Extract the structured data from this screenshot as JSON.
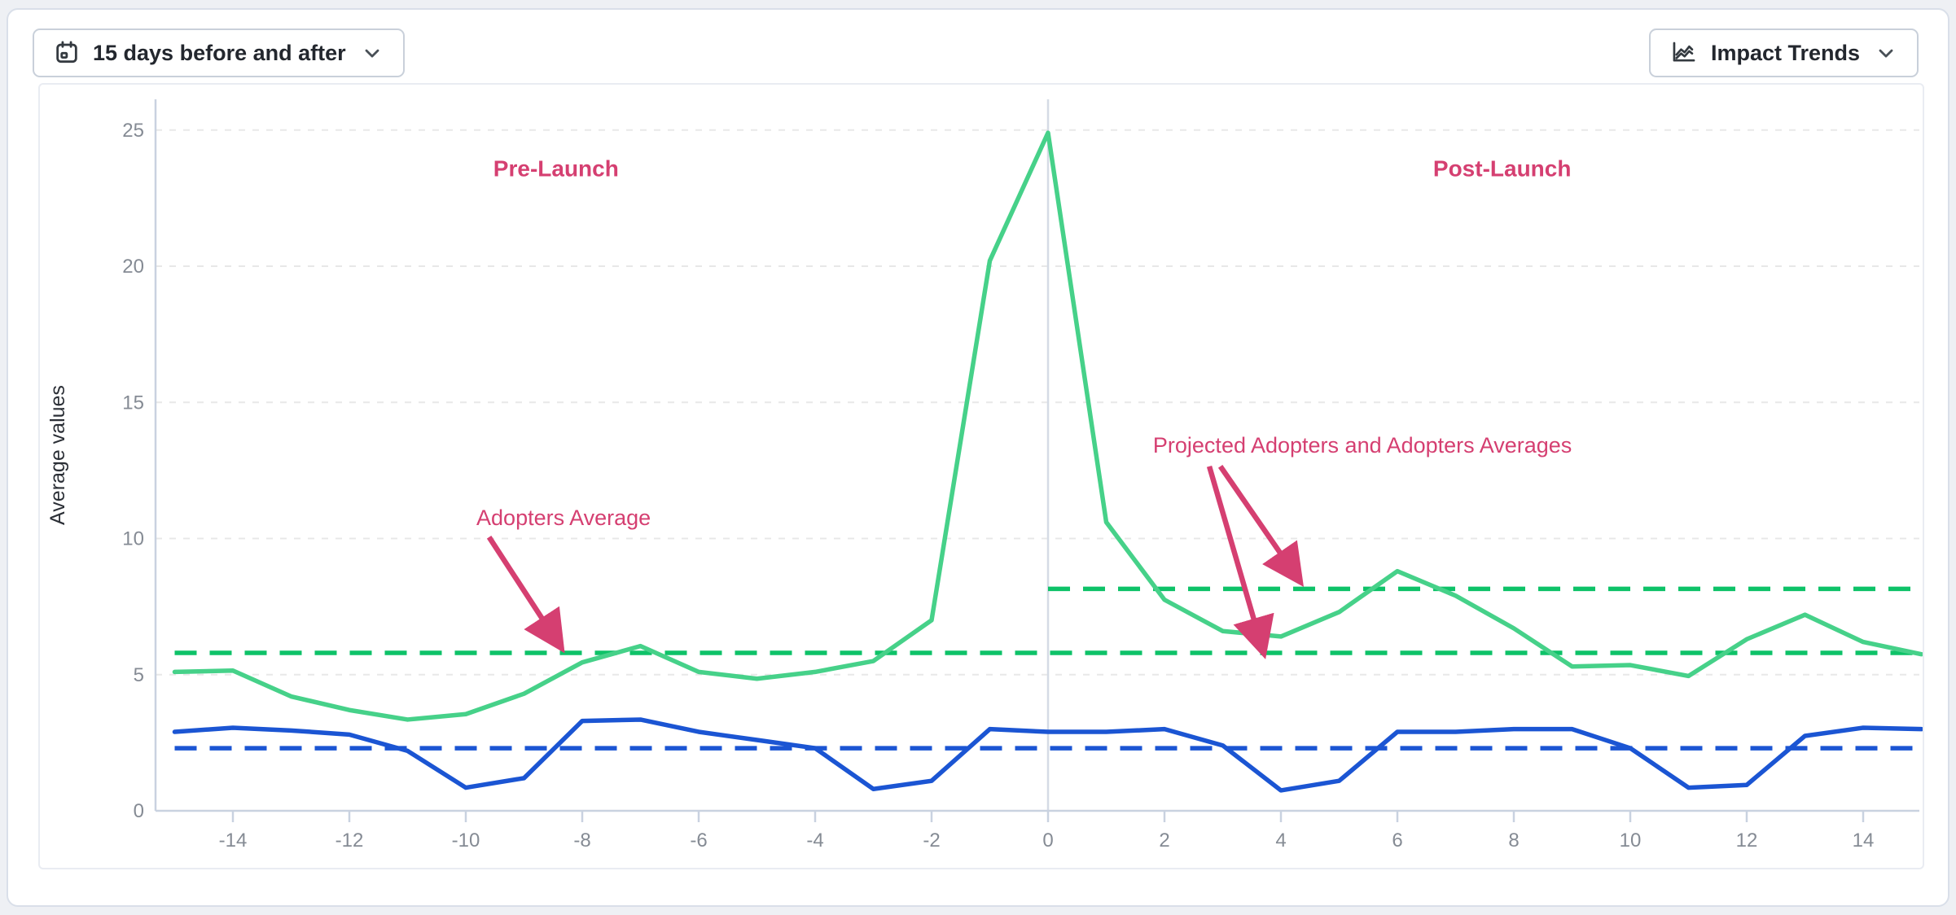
{
  "toolbar": {
    "date_range_button": {
      "label": "15 days before and after",
      "icon": "calendar-icon",
      "chevron": "chevron-down-icon"
    },
    "trends_button": {
      "label": "Impact Trends",
      "icon": "line-chart-icon",
      "chevron": "chevron-down-icon"
    }
  },
  "chart_data": {
    "type": "line",
    "title": "",
    "ylabel": "Average values",
    "xlabel": "",
    "ylim": [
      0,
      26.5
    ],
    "xlim": [
      -15,
      15
    ],
    "grid": "horizontal-dashed",
    "legend_position": "none",
    "yticks": [
      0,
      5,
      10,
      15,
      20,
      25
    ],
    "xticks": [
      -14,
      -12,
      -10,
      -8,
      -6,
      -4,
      -2,
      0,
      2,
      4,
      6,
      8,
      10,
      12,
      14
    ],
    "vertical_line_x": 0,
    "x": [
      -15,
      -14,
      -13,
      -12,
      -11,
      -10,
      -9,
      -8,
      -7,
      -6,
      -5,
      -4,
      -3,
      -2,
      -1,
      0,
      1,
      2,
      3,
      4,
      5,
      6,
      7,
      8,
      9,
      10,
      11,
      12,
      13,
      14,
      15
    ],
    "series": [
      {
        "name": "Adopters",
        "color": "#46d189",
        "style": "solid",
        "values": [
          5.1,
          5.15,
          4.2,
          3.7,
          3.35,
          3.55,
          4.3,
          5.45,
          6.05,
          5.1,
          4.85,
          5.1,
          5.5,
          7.0,
          20.2,
          24.9,
          10.6,
          7.75,
          6.6,
          6.4,
          7.3,
          8.8,
          7.9,
          6.7,
          5.3,
          5.35,
          4.95,
          6.3,
          7.2,
          6.2,
          5.75
        ]
      },
      {
        "name": "Projected Adopters",
        "color": "#1b55d3",
        "style": "solid",
        "values": [
          2.9,
          3.05,
          2.95,
          2.8,
          2.2,
          0.85,
          1.2,
          3.3,
          3.35,
          2.9,
          2.6,
          2.3,
          0.8,
          1.1,
          3.0,
          2.9,
          2.9,
          3.0,
          2.4,
          0.75,
          1.1,
          2.9,
          2.9,
          3.0,
          3.0,
          2.3,
          0.85,
          0.95,
          2.75,
          3.05,
          3.0
        ]
      }
    ],
    "reference_lines": [
      {
        "name": "Adopters Average (Pre-Launch)",
        "value": 5.8,
        "x_start": -15,
        "x_end": 15,
        "color": "#0ec268",
        "style": "dashed"
      },
      {
        "name": "Adopters Average (Post-Launch)",
        "value": 8.15,
        "x_start": 0,
        "x_end": 15,
        "color": "#0ec268",
        "style": "dashed"
      },
      {
        "name": "Projected Adopters Average",
        "value": 2.3,
        "x_start": -15,
        "x_end": 15,
        "color": "#1b55d3",
        "style": "dashed"
      }
    ],
    "annotations": [
      {
        "id": "pre-launch-label",
        "text": "Pre-Launch",
        "x": -8.45,
        "y": 23.3,
        "bold": true,
        "arrows": []
      },
      {
        "id": "post-launch-label",
        "text": "Post-Launch",
        "x": 7.8,
        "y": 23.3,
        "bold": true,
        "arrows": []
      },
      {
        "id": "adopters-average-label",
        "text": "Adopters Average",
        "x": -8.32,
        "y": 10.5,
        "bold": false,
        "arrows": [
          {
            "from": {
              "x": -9.6,
              "y": 10.05
            },
            "to": {
              "x": -8.35,
              "y": 5.95
            }
          }
        ]
      },
      {
        "id": "projected-adopters-averages-label",
        "text": "Projected Adopters and Adopters Averages",
        "x": 5.4,
        "y": 13.15,
        "bold": false,
        "arrows": [
          {
            "from": {
              "x": 2.77,
              "y": 12.65
            },
            "to": {
              "x": 3.71,
              "y": 5.75
            }
          },
          {
            "from": {
              "x": 2.96,
              "y": 12.65
            },
            "to": {
              "x": 4.34,
              "y": 8.38
            }
          }
        ]
      }
    ]
  },
  "colors": {
    "annotation_pink": "#d53f71",
    "adopters_green": "#46d189",
    "adopters_average_green": "#0ec268",
    "projected_blue": "#1b55d3",
    "tick_text": "#858b94",
    "axis_line": "#c9d2e0",
    "gridline": "#e8e8e8",
    "zero_line": "#d5dbe5",
    "axis_title": "#2b2f36"
  }
}
